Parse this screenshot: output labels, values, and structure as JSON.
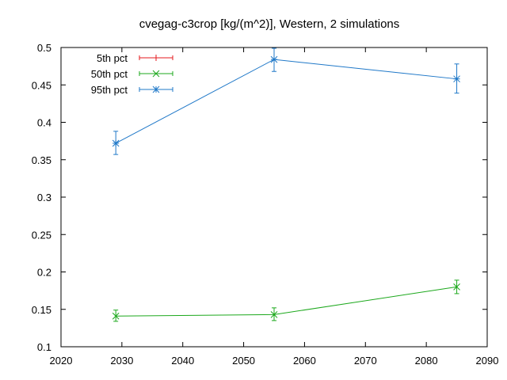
{
  "chart_data": {
    "type": "line",
    "title": "cvegag-c3crop [kg/(m^2)], Western, 2 simulations",
    "xlabel": "",
    "ylabel": "",
    "xlim": [
      2020,
      2090
    ],
    "ylim": [
      0.1,
      0.5
    ],
    "x_ticks": [
      2020,
      2030,
      2040,
      2050,
      2060,
      2070,
      2080,
      2090
    ],
    "y_ticks": [
      0.1,
      0.15,
      0.2,
      0.25,
      0.3,
      0.35,
      0.4,
      0.45,
      0.5
    ],
    "x_tick_labels": [
      "2020",
      "2030",
      "2040",
      "2050",
      "2060",
      "2070",
      "2080",
      "2090"
    ],
    "y_tick_labels": [
      "0.1",
      "0.15",
      "0.2",
      "0.25",
      "0.3",
      "0.35",
      "0.4",
      "0.45",
      "0.5"
    ],
    "grid": false,
    "legend_position": "top-left",
    "series": [
      {
        "name": "5th pct",
        "color": "#e41a1c",
        "marker": "plus",
        "points": []
      },
      {
        "name": "50th pct",
        "color": "#1ca81c",
        "marker": "x",
        "points": [
          {
            "x": 2029,
            "y": 0.141,
            "err_low": 0.134,
            "err_high": 0.149
          },
          {
            "x": 2055,
            "y": 0.143,
            "err_low": 0.135,
            "err_high": 0.152
          },
          {
            "x": 2085,
            "y": 0.18,
            "err_low": 0.171,
            "err_high": 0.189
          }
        ]
      },
      {
        "name": "95th pct",
        "color": "#1f78c8",
        "marker": "star",
        "points": [
          {
            "x": 2029,
            "y": 0.372,
            "err_low": 0.357,
            "err_high": 0.388
          },
          {
            "x": 2055,
            "y": 0.484,
            "err_low": 0.468,
            "err_high": 0.499
          },
          {
            "x": 2085,
            "y": 0.458,
            "err_low": 0.439,
            "err_high": 0.478
          }
        ]
      }
    ]
  }
}
